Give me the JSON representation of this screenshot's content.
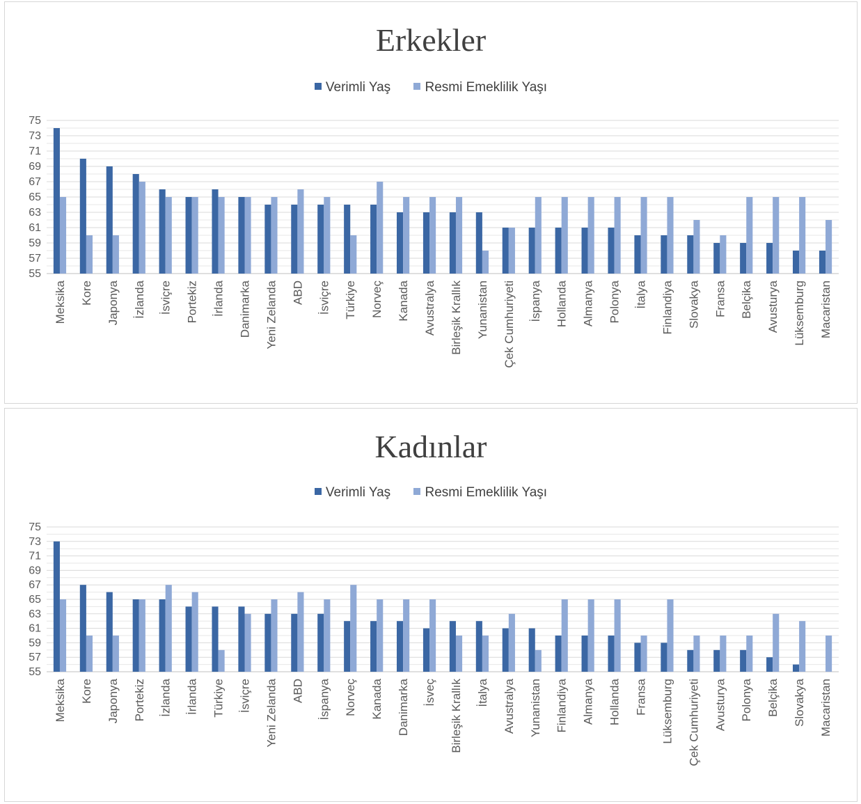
{
  "colors": {
    "productive": "#3B67A4",
    "official": "#8FA9D6",
    "grid": "#d9d9d9",
    "text": "#404040"
  },
  "chart_data": [
    {
      "type": "bar",
      "title": "Erkekler",
      "ylim": [
        55,
        75
      ],
      "yticks": [
        "75",
        "73",
        "71",
        "69",
        "67",
        "65",
        "63",
        "61",
        "59",
        "57",
        "55"
      ],
      "grid": true,
      "legend_position": "top",
      "categories": [
        "Meksika",
        "Kore",
        "Japonya",
        "İzlanda",
        "İsviçre",
        "Portekiz",
        "İrlanda",
        "Danimarka",
        "Yeni Zelanda",
        "ABD",
        "İsviçre",
        "Türkiye",
        "Norveç",
        "Kanada",
        "Avustralya",
        "Birleşik Krallık",
        "Yunanistan",
        "Çek Cumhuriyeti",
        "İspanya",
        "Hollanda",
        "Almanya",
        "Polonya",
        "İtalya",
        "Finlandiya",
        "Slovakya",
        "Fransa",
        "Belçika",
        "Avusturya",
        "Lüksemburg",
        "Macaristan"
      ],
      "series": [
        {
          "name": "Verimli Yaş",
          "values": [
            74,
            70,
            69,
            68,
            66,
            65,
            66,
            65,
            64,
            64,
            64,
            64,
            64,
            63,
            63,
            63,
            63,
            61,
            61,
            61,
            61,
            61,
            60,
            60,
            60,
            59,
            59,
            59,
            58,
            58
          ]
        },
        {
          "name": "Resmi Emeklilik Yaşı",
          "values": [
            65,
            60,
            60,
            67,
            65,
            65,
            65,
            65,
            65,
            66,
            65,
            60,
            67,
            65,
            65,
            65,
            58,
            61,
            65,
            65,
            65,
            65,
            65,
            65,
            62,
            60,
            65,
            65,
            65,
            62
          ]
        }
      ]
    },
    {
      "type": "bar",
      "title": "Kadınlar",
      "ylim": [
        55,
        75
      ],
      "yticks": [
        "75",
        "73",
        "71",
        "69",
        "67",
        "65",
        "63",
        "61",
        "59",
        "57",
        "55"
      ],
      "grid": true,
      "legend_position": "top",
      "categories": [
        "Meksika",
        "Kore",
        "Japonya",
        "Portekiz",
        "İzlanda",
        "İrlanda",
        "Türkiye",
        "İsviçre",
        "Yeni Zelanda",
        "ABD",
        "İspanya",
        "Norveç",
        "Kanada",
        "Danimarka",
        "İsveç",
        "Birleşik Krallık",
        "İtalya",
        "Avustralya",
        "Yunanistan",
        "Finlandiya",
        "Almanya",
        "Hollanda",
        "Fransa",
        "Lüksemburg",
        "Çek Cumhuriyeti",
        "Avusturya",
        "Polonya",
        "Belçika",
        "Slovakya",
        "Macaristan"
      ],
      "series": [
        {
          "name": "Verimli Yaş",
          "values": [
            73,
            67,
            66,
            65,
            65,
            64,
            64,
            64,
            63,
            63,
            63,
            62,
            62,
            62,
            61,
            62,
            62,
            61,
            61,
            60,
            60,
            60,
            59,
            59,
            58,
            58,
            58,
            57,
            56,
            55
          ]
        },
        {
          "name": "Resmi Emeklilik Yaşı",
          "values": [
            65,
            60,
            60,
            65,
            67,
            66,
            58,
            63,
            65,
            66,
            65,
            67,
            65,
            65,
            65,
            60,
            60,
            63,
            58,
            65,
            65,
            65,
            60,
            65,
            60,
            60,
            60,
            63,
            62,
            60
          ]
        }
      ]
    }
  ]
}
